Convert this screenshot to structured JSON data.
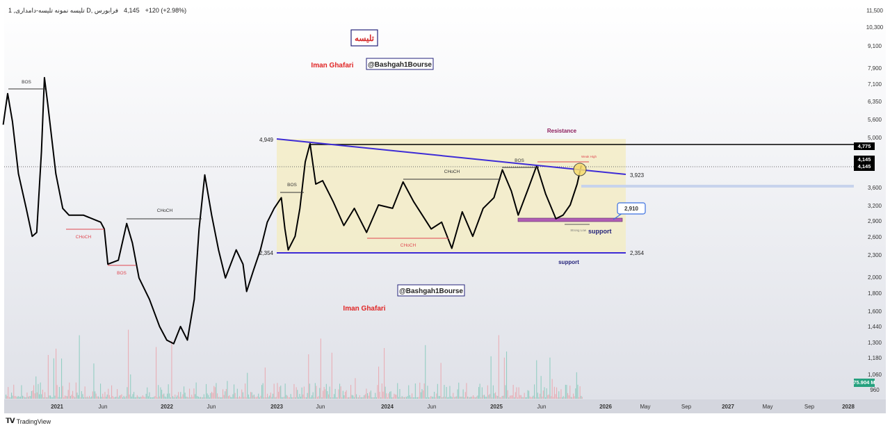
{
  "header": {
    "symbol_title": "1 ,تلیسه نمونه تلیسه-دامداری D, فرابورس",
    "last_price": "4,145",
    "change": "+120 (+2.98%)"
  },
  "footer": {
    "brand": "TradingView",
    "logo": "TV"
  },
  "watermarks": {
    "logo_text": "تلیسه",
    "author": "Iman Ghafari",
    "handle": "@Bashgah1Bourse"
  },
  "colors": {
    "price_line": "#000000",
    "trendline": "#3d2bd6",
    "range_fill": "#f3ecc6",
    "bearish_label": "#e0454f",
    "resistance_label": "#8b1a5a",
    "support_label": "#23227a",
    "support_zone": "#b05cb5",
    "volume_up": "#5fbfa8",
    "volume_down": "#ef8a93",
    "volume_tag": "#26a17f"
  },
  "chart_data": {
    "type": "line",
    "title": "",
    "xlabel": "",
    "ylabel": "",
    "ylim": [
      960,
      11500
    ],
    "yscale": "log",
    "grid": false,
    "x_ticks": [
      "2021",
      "Jun",
      "2022",
      "Jun",
      "2023",
      "Jun",
      "2024",
      "Jun",
      "2025",
      "Jun",
      "2026",
      "May",
      "Sep",
      "2027",
      "May",
      "Sep",
      "2028"
    ],
    "y_ticks": [
      "11,500",
      "10,300",
      "9,100",
      "7,900",
      "7,100",
      "6,350",
      "5,600",
      "5,000",
      "3,600",
      "3,200",
      "2,900",
      "2,600",
      "2,300",
      "2,000",
      "1,800",
      "1,600",
      "1,440",
      "1,300",
      "1,180",
      "1,060",
      "960"
    ],
    "price_tags": {
      "high_line": "4,775",
      "last": "4,145",
      "last2": "4,145",
      "volume": "75.904 M"
    },
    "series": [
      {
        "points": [
          [
            "2020-07-05",
            5420
          ],
          [
            "2020-07-20",
            6680
          ],
          [
            "2020-08-05",
            5530
          ],
          [
            "2020-08-25",
            3930
          ],
          [
            "2020-09-20",
            3145
          ],
          [
            "2020-10-10",
            2610
          ],
          [
            "2020-10-25",
            2680
          ],
          [
            "2020-11-10",
            4550
          ],
          [
            "2020-11-20",
            7410
          ],
          [
            "2020-12-01",
            6230
          ],
          [
            "2020-12-28",
            3930
          ],
          [
            "2021-01-20",
            3145
          ],
          [
            "2021-02-10",
            3010
          ],
          [
            "2021-03-30",
            3010
          ],
          [
            "2021-05-27",
            2875
          ],
          [
            "2021-06-08",
            2745
          ],
          [
            "2021-06-20",
            2170
          ],
          [
            "2021-07-25",
            2225
          ],
          [
            "2021-08-22",
            2850
          ],
          [
            "2021-09-10",
            2495
          ],
          [
            "2021-10-02",
            1990
          ],
          [
            "2021-11-06",
            1730
          ],
          [
            "2021-12-10",
            1440
          ],
          [
            "2022-01-03",
            1320
          ],
          [
            "2022-01-26",
            1290
          ],
          [
            "2022-02-18",
            1440
          ],
          [
            "2022-03-13",
            1320
          ],
          [
            "2022-04-05",
            1730
          ],
          [
            "2022-04-21",
            2745
          ],
          [
            "2022-05-10",
            3900
          ],
          [
            "2022-06-02",
            3010
          ],
          [
            "2022-06-25",
            2380
          ],
          [
            "2022-07-18",
            1990
          ],
          [
            "2022-08-23",
            2380
          ],
          [
            "2022-09-15",
            2170
          ],
          [
            "2022-09-27",
            1820
          ],
          [
            "2022-10-20",
            2090
          ],
          [
            "2022-11-12",
            2380
          ],
          [
            "2022-12-05",
            2875
          ],
          [
            "2022-12-28",
            3145
          ],
          [
            "2023-01-21",
            3370
          ],
          [
            "2023-02-02",
            2745
          ],
          [
            "2023-02-13",
            2380
          ],
          [
            "2023-03-08",
            2610
          ],
          [
            "2023-03-24",
            3145
          ],
          [
            "2023-04-11",
            4250
          ],
          [
            "2023-04-27",
            4800
          ],
          [
            "2023-05-16",
            3680
          ],
          [
            "2023-06-08",
            3760
          ],
          [
            "2023-07-13",
            3290
          ],
          [
            "2023-08-18",
            2810
          ],
          [
            "2023-09-22",
            3145
          ],
          [
            "2023-11-02",
            2680
          ],
          [
            "2023-12-12",
            3215
          ],
          [
            "2024-01-28",
            3145
          ],
          [
            "2024-03-03",
            3730
          ],
          [
            "2024-04-07",
            3290
          ],
          [
            "2024-06-05",
            2745
          ],
          [
            "2024-07-10",
            2875
          ],
          [
            "2024-08-13",
            2405
          ],
          [
            "2024-09-17",
            3075
          ],
          [
            "2024-10-22",
            2610
          ],
          [
            "2024-11-26",
            3145
          ],
          [
            "2025-01-01",
            3370
          ],
          [
            "2025-01-29",
            4030
          ],
          [
            "2025-02-28",
            3520
          ],
          [
            "2025-03-23",
            3010
          ],
          [
            "2025-04-27",
            3600
          ],
          [
            "2025-05-24",
            4145
          ],
          [
            "2025-06-23",
            3450
          ],
          [
            "2025-07-27",
            2940
          ],
          [
            "2025-08-20",
            3010
          ],
          [
            "2025-09-13",
            3215
          ],
          [
            "2025-10-06",
            3680
          ],
          [
            "2025-10-20",
            4145
          ]
        ]
      }
    ],
    "annotations": {
      "trendline_start": "4,949",
      "trendline_end": "3,923",
      "support_left": "2,354",
      "support_right": "2,354",
      "support_callout": "2,910",
      "resistance": "Resistance",
      "support_zone_label": "support",
      "support_line_label": "support",
      "weak_high": "Weak High",
      "strong_low": "Strong Low",
      "structure": [
        {
          "text": "BOS",
          "kind": "bullish"
        },
        {
          "text": "CHoCH",
          "kind": "bearish"
        },
        {
          "text": "BOS",
          "kind": "bearish"
        },
        {
          "text": "CHoCH",
          "kind": "bullish"
        },
        {
          "text": "BOS",
          "kind": "bullish"
        },
        {
          "text": "CHoCH",
          "kind": "bullish"
        },
        {
          "text": "CHoCH",
          "kind": "bearish"
        },
        {
          "text": "BOS",
          "kind": "bullish"
        }
      ]
    }
  }
}
